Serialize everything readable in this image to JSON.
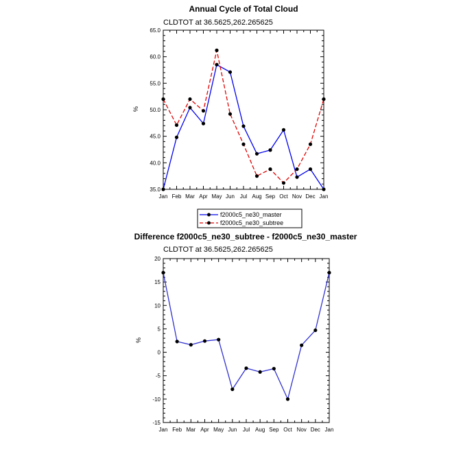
{
  "chart_data": [
    {
      "type": "line",
      "title": "Annual Cycle of Total Cloud",
      "subtitle": "CLDTOT at 36.5625,262.265625",
      "ylabel": "%",
      "xlabel": "",
      "categories": [
        "Jan",
        "Feb",
        "Mar",
        "Apr",
        "May",
        "Jun",
        "Jul",
        "Aug",
        "Sep",
        "Oct",
        "Nov",
        "Dec",
        "Jan"
      ],
      "ylim": [
        35.0,
        65.0
      ],
      "yticks": [
        "35.0",
        "40.0",
        "45.0",
        "50.0",
        "55.0",
        "60.0",
        "65.0"
      ],
      "ytick_values": [
        35,
        40,
        45,
        50,
        55,
        60,
        65
      ],
      "series": [
        {
          "name": "f2000c5_ne30_master",
          "color": "#0000ee",
          "dash": "solid",
          "values": [
            35.0,
            44.8,
            50.4,
            47.4,
            58.5,
            57.1,
            46.9,
            41.7,
            42.4,
            46.2,
            37.3,
            38.8,
            35.0
          ]
        },
        {
          "name": "f2000c5_ne30_subtree",
          "color": "#e00000",
          "dash": "dashed",
          "values": [
            52.0,
            47.1,
            52.0,
            49.8,
            61.2,
            49.2,
            43.5,
            37.5,
            38.8,
            36.2,
            38.8,
            43.5,
            52.0
          ]
        }
      ],
      "legend": {
        "placement": "bottom-center",
        "entries": [
          "f2000c5_ne30_master",
          "f2000c5_ne30_subtree"
        ]
      }
    },
    {
      "type": "line",
      "title": "Difference f2000c5_ne30_subtree - f2000c5_ne30_master",
      "subtitle": "CLDTOT at 36.5625,262.265625",
      "ylabel": "%",
      "xlabel": "",
      "categories": [
        "Jan",
        "Feb",
        "Mar",
        "Apr",
        "May",
        "Jun",
        "Jul",
        "Aug",
        "Sep",
        "Oct",
        "Nov",
        "Dec",
        "Jan"
      ],
      "ylim": [
        -15,
        20
      ],
      "yticks": [
        "-15",
        "-10",
        "-5",
        "0",
        "5",
        "10",
        "15",
        "20"
      ],
      "ytick_values": [
        -15,
        -10,
        -5,
        0,
        5,
        10,
        15,
        20
      ],
      "series": [
        {
          "name": "difference",
          "color": "#3030d0",
          "dash": "solid",
          "values": [
            17.0,
            2.3,
            1.6,
            2.4,
            2.7,
            -7.9,
            -3.4,
            -4.2,
            -3.5,
            -10.0,
            1.5,
            4.7,
            17.0
          ]
        }
      ]
    }
  ]
}
